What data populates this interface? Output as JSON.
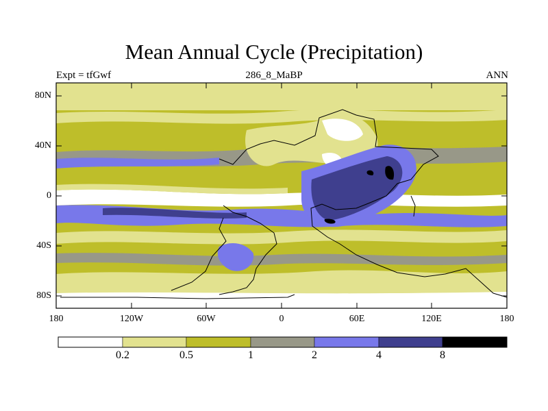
{
  "title": "Mean Annual Cycle (Precipitation)",
  "subtitle_left": "Expt = tfGwf",
  "subtitle_center": "286_8_MaBP",
  "subtitle_right": "ANN",
  "lat_labels": [
    "80N",
    "40N",
    "0",
    "40S",
    "80S"
  ],
  "lon_labels": [
    "180",
    "120W",
    "60W",
    "0",
    "60E",
    "120E",
    "180"
  ],
  "colorbar": {
    "levels": [
      "0.2",
      "0.5",
      "1",
      "2",
      "4",
      "8"
    ],
    "colors": [
      "#ffffff",
      "#e2e28f",
      "#bebe2a",
      "#989888",
      "#7878ea",
      "#3f3f8e",
      "#000000"
    ]
  }
}
